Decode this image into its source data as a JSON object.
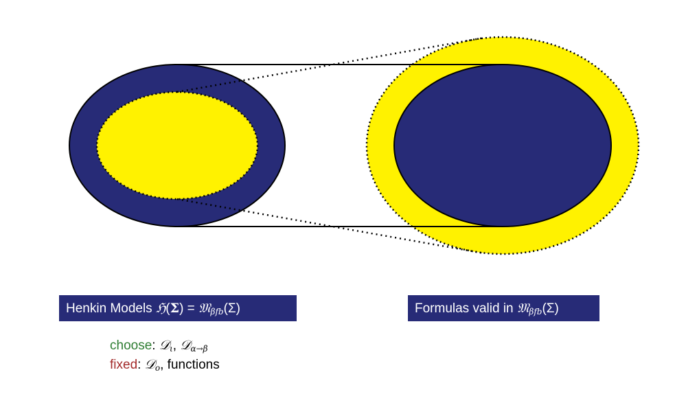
{
  "colors": {
    "navy": "#272b77",
    "yellow": "#fff200",
    "outline": "#000000",
    "choose": "#2e7d32",
    "fixed": "#a32b2b"
  },
  "labels": {
    "henkin": {
      "prefix": "Henkin Models ",
      "H_symbol": "ℌ",
      "open_paren": "(",
      "sigma": "Σ",
      "close_paren": ")",
      "equals": " = ",
      "M_symbol": "𝔐",
      "subscript": "βfb",
      "M_arg": "(Σ)"
    },
    "valid": {
      "prefix": "Formulas valid in ",
      "M_symbol": "𝔐",
      "subscript": "βfb",
      "M_arg": "(Σ)"
    }
  },
  "notes": {
    "choose_word": "choose",
    "choose_sep": ": ",
    "choose_D1": "𝒟",
    "choose_D1_sub": "ι",
    "choose_comma": ", ",
    "choose_D2": "𝒟",
    "choose_D2_sub": "α→β",
    "fixed_word": "fixed",
    "fixed_sep": ": ",
    "fixed_D": "𝒟",
    "fixed_D_sub": "o",
    "fixed_rest": ", functions"
  }
}
